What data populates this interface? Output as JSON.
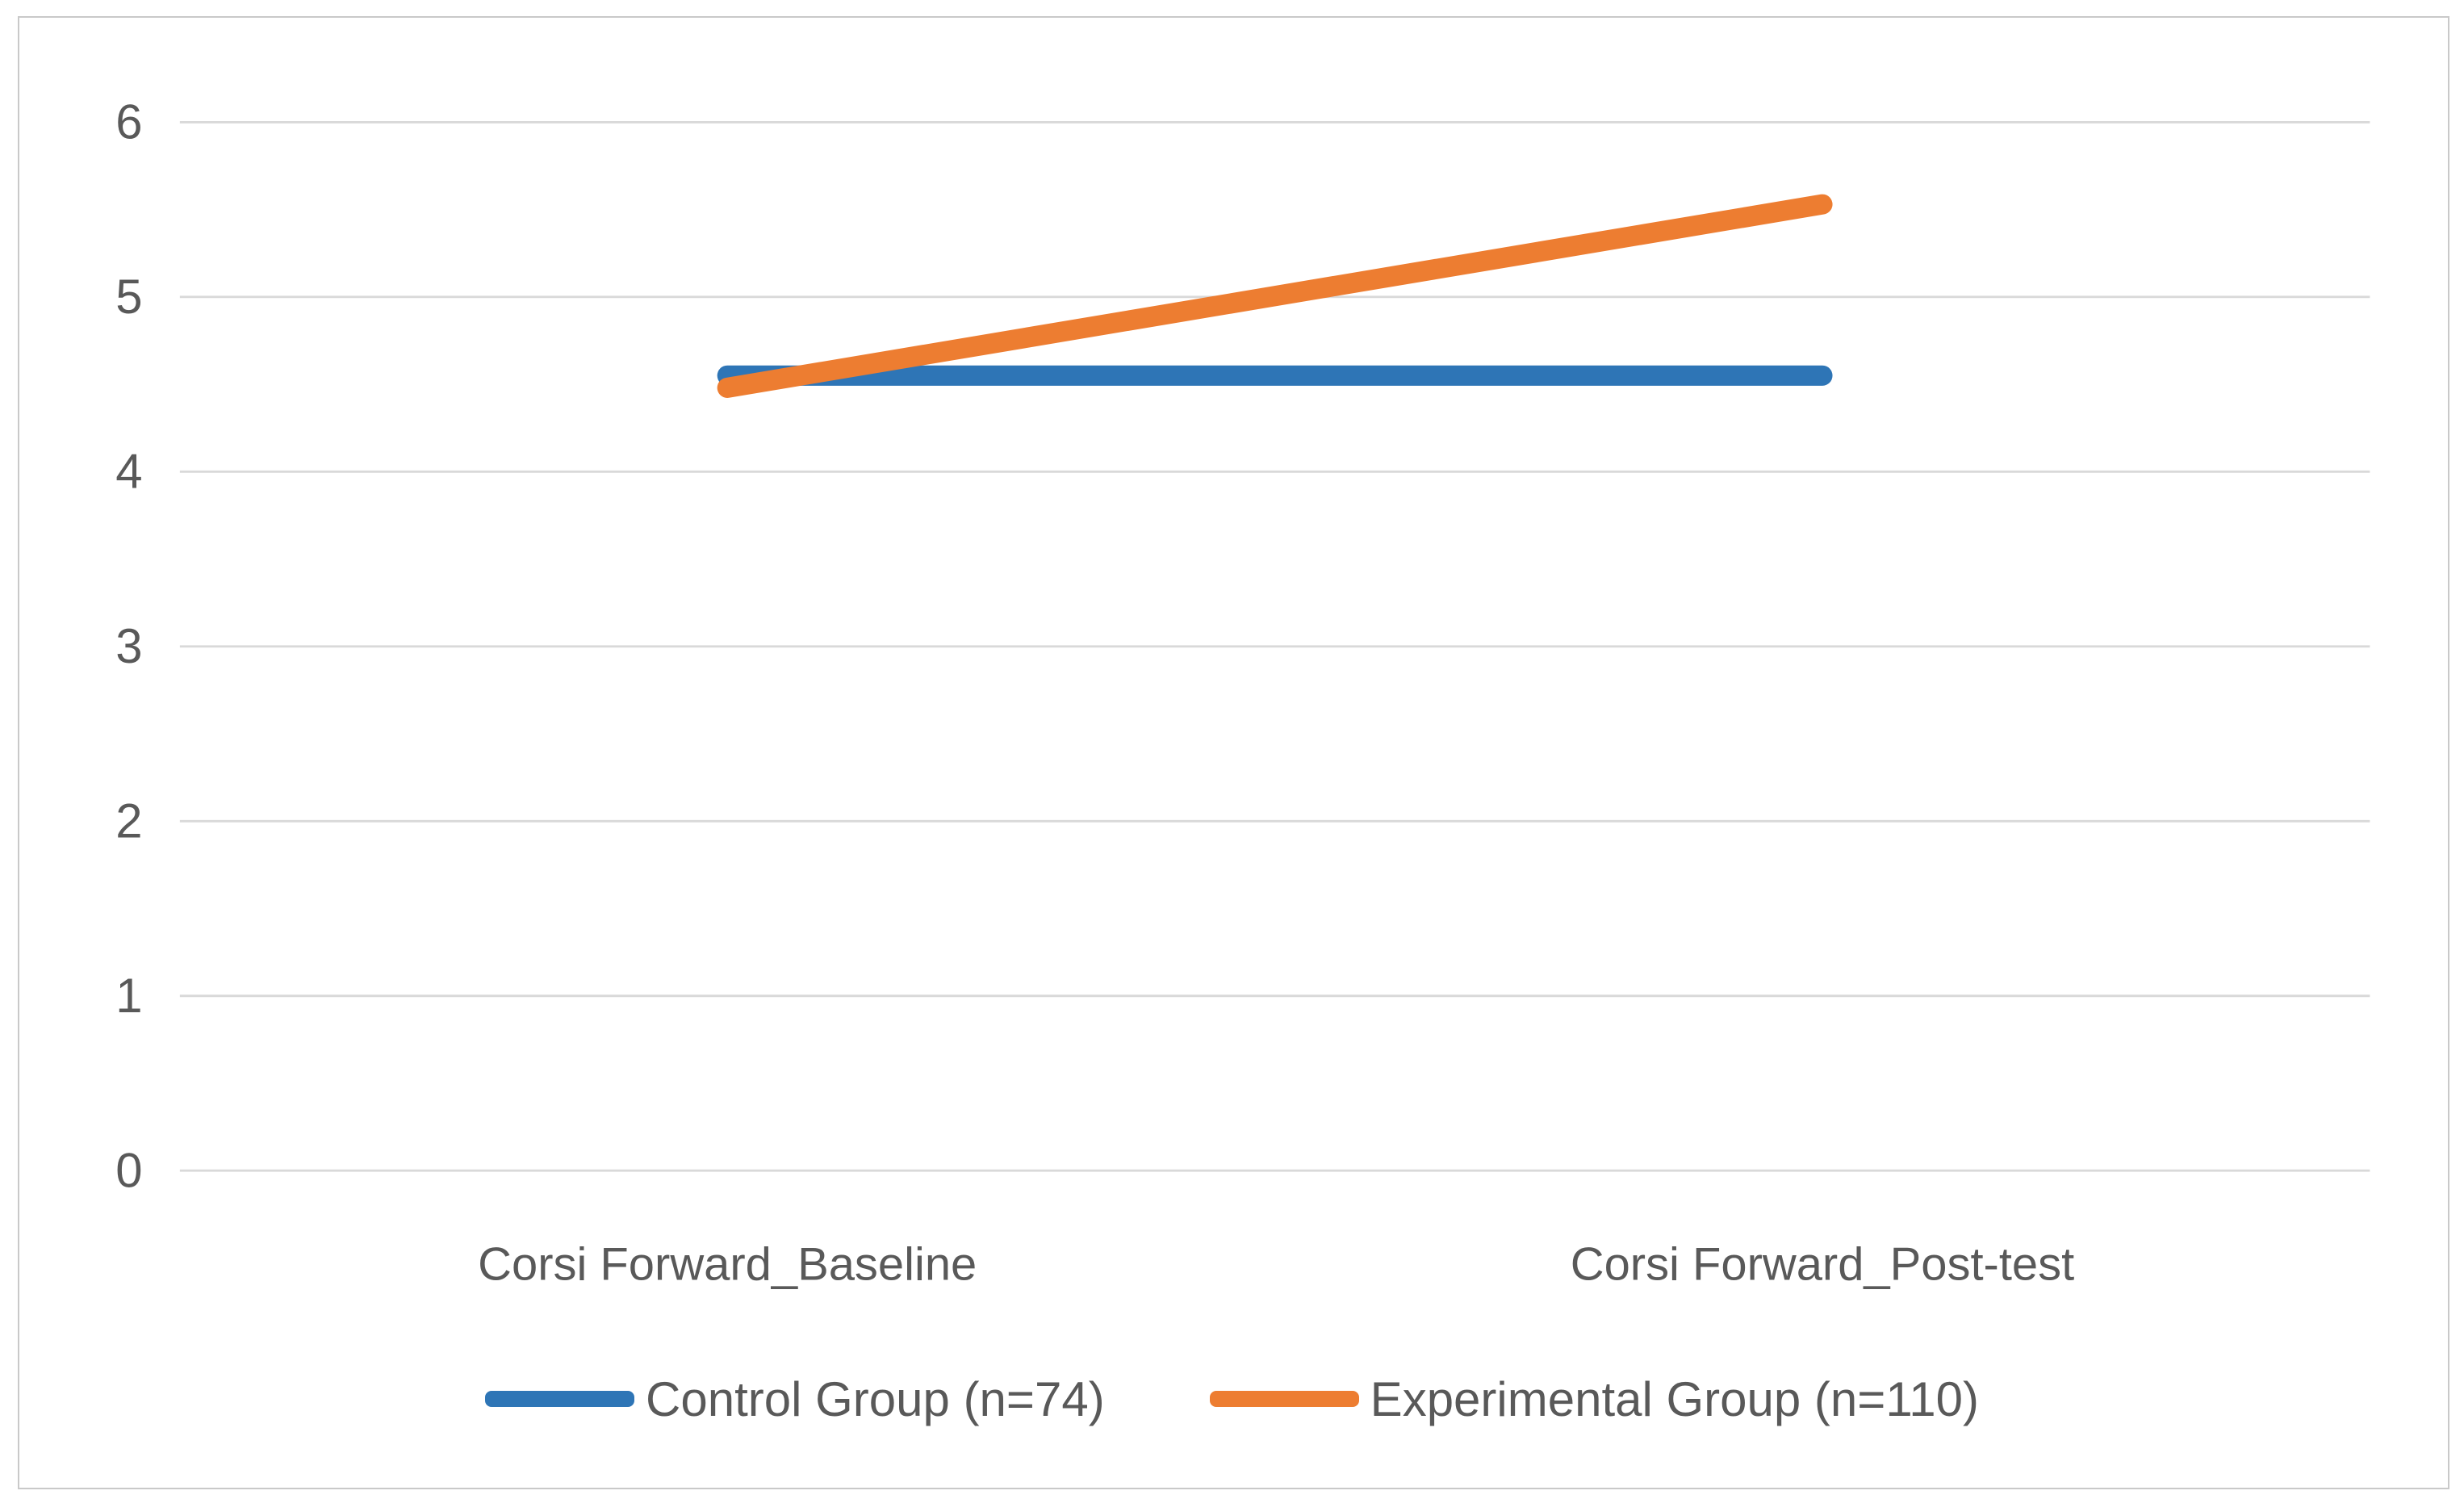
{
  "chart_data": {
    "type": "line",
    "categories": [
      "Corsi Forward_Baseline",
      "Corsi Forward_Post-test"
    ],
    "series": [
      {
        "name": "Control Group (n=74)",
        "values": [
          4.55,
          4.55
        ],
        "color": "#2E75B6"
      },
      {
        "name": "Experimental Group (n=110)",
        "values": [
          4.48,
          5.53
        ],
        "color": "#ED7D31"
      }
    ],
    "title": "",
    "xlabel": "",
    "ylabel": "",
    "ylim": [
      0,
      6
    ],
    "ytick_step": 1,
    "yticks": [
      "0",
      "1",
      "2",
      "3",
      "4",
      "5",
      "6"
    ],
    "grid": true,
    "legend_position": "bottom"
  },
  "colors": {
    "grid": "#d9d9d9",
    "axis_text": "#595959",
    "frame_border": "#c9c9c9",
    "background": "#ffffff"
  }
}
